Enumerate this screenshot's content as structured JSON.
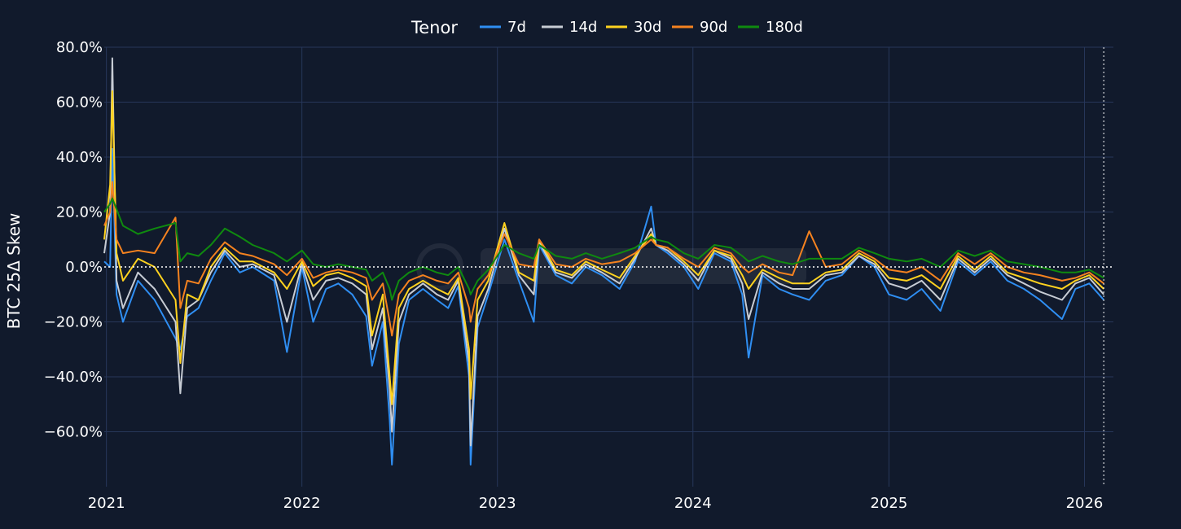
{
  "legend": {
    "title": "Tenor"
  },
  "yaxis": {
    "title": "BTC 25Δ Skew"
  },
  "colors": {
    "background": "#111a2c",
    "grid": "#27375a",
    "zero_line": "#ffffff",
    "text": "#ffffff"
  },
  "chart_data": {
    "type": "line",
    "ylabel": "BTC 25Δ Skew",
    "xlabel": "",
    "ylim": [
      -0.8,
      0.8
    ],
    "xlim": [
      "2020-12-28",
      "2026-02-24"
    ],
    "y_tick_values": [
      0.8,
      0.6,
      0.4,
      0.2,
      0.0,
      -0.2,
      -0.4,
      -0.6
    ],
    "y_tick_labels": [
      "80.0%",
      "60.0%",
      "40.0%",
      "20.0%",
      "0.0%",
      "−20.0%",
      "−40.0%",
      "−60.0%"
    ],
    "x_tick_values": [
      "2021-01-01",
      "2022-01-01",
      "2023-01-01",
      "2024-01-01",
      "2025-01-01",
      "2026-01-01"
    ],
    "x_tick_labels": [
      "2021",
      "2022",
      "2023",
      "2024",
      "2025",
      "2026"
    ],
    "grid": true,
    "legend_position": "top-center",
    "reference_lines": [
      {
        "axis": "y",
        "value": 0.0,
        "style": "dotted"
      },
      {
        "axis": "x",
        "value": "2026-02-06",
        "style": "dotted"
      }
    ],
    "series": [
      {
        "name": "7d",
        "color": "#2f8ef2",
        "x": [
          "2020-12-28",
          "2021-01-08",
          "2021-01-12",
          "2021-01-20",
          "2021-02-01",
          "2021-03-01",
          "2021-04-01",
          "2021-05-10",
          "2021-05-19",
          "2021-06-01",
          "2021-06-22",
          "2021-07-15",
          "2021-08-10",
          "2021-09-07",
          "2021-10-01",
          "2021-11-10",
          "2021-12-04",
          "2022-01-01",
          "2022-01-22",
          "2022-02-15",
          "2022-03-10",
          "2022-04-05",
          "2022-05-01",
          "2022-05-12",
          "2022-06-01",
          "2022-06-14",
          "2022-06-18",
          "2022-07-01",
          "2022-07-20",
          "2022-08-15",
          "2022-09-10",
          "2022-10-01",
          "2022-10-20",
          "2022-11-09",
          "2022-11-12",
          "2022-11-25",
          "2022-12-15",
          "2023-01-14",
          "2023-02-10",
          "2023-03-10",
          "2023-03-20",
          "2023-04-20",
          "2023-05-20",
          "2023-06-15",
          "2023-07-15",
          "2023-08-17",
          "2023-09-15",
          "2023-10-15",
          "2023-10-24",
          "2023-11-15",
          "2023-12-15",
          "2024-01-11",
          "2024-02-10",
          "2024-03-12",
          "2024-04-02",
          "2024-04-14",
          "2024-05-10",
          "2024-06-10",
          "2024-07-05",
          "2024-08-05",
          "2024-09-05",
          "2024-10-05",
          "2024-11-06",
          "2024-12-05",
          "2025-01-01",
          "2025-02-03",
          "2025-03-03",
          "2025-04-07",
          "2025-05-10",
          "2025-06-10",
          "2025-07-10",
          "2025-08-10",
          "2025-09-10",
          "2025-10-10",
          "2025-11-20",
          "2025-12-15",
          "2026-01-10",
          "2026-02-06"
        ],
        "y": [
          0.02,
          0.0,
          0.43,
          -0.1,
          -0.2,
          -0.05,
          -0.12,
          -0.26,
          -0.3,
          -0.18,
          -0.15,
          -0.05,
          0.05,
          -0.02,
          0.0,
          -0.05,
          -0.31,
          0.0,
          -0.2,
          -0.08,
          -0.06,
          -0.1,
          -0.18,
          -0.36,
          -0.2,
          -0.56,
          -0.72,
          -0.28,
          -0.12,
          -0.08,
          -0.12,
          -0.15,
          -0.07,
          -0.4,
          -0.72,
          -0.22,
          -0.1,
          0.1,
          -0.05,
          -0.2,
          0.08,
          -0.03,
          -0.06,
          0.0,
          -0.03,
          -0.08,
          0.02,
          0.22,
          0.08,
          0.05,
          0.0,
          -0.08,
          0.05,
          0.02,
          -0.1,
          -0.33,
          -0.03,
          -0.08,
          -0.1,
          -0.12,
          -0.05,
          -0.03,
          0.04,
          0.0,
          -0.1,
          -0.12,
          -0.08,
          -0.16,
          0.02,
          -0.03,
          0.02,
          -0.05,
          -0.08,
          -0.12,
          -0.19,
          -0.08,
          -0.06,
          -0.12
        ]
      },
      {
        "name": "14d",
        "color": "#c7ccd4",
        "x": [
          "2020-12-28",
          "2021-01-08",
          "2021-01-12",
          "2021-01-20",
          "2021-02-01",
          "2021-03-01",
          "2021-04-01",
          "2021-05-10",
          "2021-05-19",
          "2021-06-01",
          "2021-06-22",
          "2021-07-15",
          "2021-08-10",
          "2021-09-07",
          "2021-10-01",
          "2021-11-10",
          "2021-12-04",
          "2022-01-01",
          "2022-01-22",
          "2022-02-15",
          "2022-03-10",
          "2022-04-05",
          "2022-05-01",
          "2022-05-12",
          "2022-06-01",
          "2022-06-14",
          "2022-06-18",
          "2022-07-01",
          "2022-07-20",
          "2022-08-15",
          "2022-09-10",
          "2022-10-01",
          "2022-10-20",
          "2022-11-09",
          "2022-11-12",
          "2022-11-25",
          "2022-12-15",
          "2023-01-14",
          "2023-02-10",
          "2023-03-10",
          "2023-03-20",
          "2023-04-20",
          "2023-05-20",
          "2023-06-15",
          "2023-07-15",
          "2023-08-17",
          "2023-09-15",
          "2023-10-15",
          "2023-10-24",
          "2023-11-15",
          "2023-12-15",
          "2024-01-11",
          "2024-02-10",
          "2024-03-12",
          "2024-04-02",
          "2024-04-14",
          "2024-05-10",
          "2024-06-10",
          "2024-07-05",
          "2024-08-05",
          "2024-09-05",
          "2024-10-05",
          "2024-11-06",
          "2024-12-05",
          "2025-01-01",
          "2025-02-03",
          "2025-03-03",
          "2025-04-07",
          "2025-05-10",
          "2025-06-10",
          "2025-07-10",
          "2025-08-10",
          "2025-09-10",
          "2025-10-10",
          "2025-11-20",
          "2025-12-15",
          "2026-01-10",
          "2026-02-06"
        ],
        "y": [
          0.05,
          0.2,
          0.76,
          -0.05,
          -0.15,
          -0.02,
          -0.08,
          -0.2,
          -0.46,
          -0.15,
          -0.12,
          -0.02,
          0.06,
          0.0,
          0.01,
          -0.03,
          -0.2,
          0.01,
          -0.12,
          -0.05,
          -0.04,
          -0.06,
          -0.1,
          -0.3,
          -0.15,
          -0.45,
          -0.6,
          -0.2,
          -0.1,
          -0.06,
          -0.1,
          -0.12,
          -0.05,
          -0.35,
          -0.65,
          -0.18,
          -0.08,
          0.14,
          -0.03,
          -0.1,
          0.09,
          -0.02,
          -0.04,
          0.01,
          -0.02,
          -0.06,
          0.03,
          0.14,
          0.08,
          0.06,
          0.01,
          -0.05,
          0.06,
          0.03,
          -0.06,
          -0.19,
          -0.02,
          -0.06,
          -0.08,
          -0.08,
          -0.03,
          -0.02,
          0.04,
          0.01,
          -0.06,
          -0.08,
          -0.05,
          -0.12,
          0.03,
          -0.02,
          0.03,
          -0.03,
          -0.06,
          -0.09,
          -0.12,
          -0.06,
          -0.04,
          -0.1
        ]
      },
      {
        "name": "30d",
        "color": "#ffd21f",
        "x": [
          "2020-12-28",
          "2021-01-08",
          "2021-01-12",
          "2021-01-20",
          "2021-02-01",
          "2021-03-01",
          "2021-04-01",
          "2021-05-10",
          "2021-05-19",
          "2021-06-01",
          "2021-06-22",
          "2021-07-15",
          "2021-08-10",
          "2021-09-07",
          "2021-10-01",
          "2021-11-10",
          "2021-12-04",
          "2022-01-01",
          "2022-01-22",
          "2022-02-15",
          "2022-03-10",
          "2022-04-05",
          "2022-05-01",
          "2022-05-12",
          "2022-06-01",
          "2022-06-14",
          "2022-06-18",
          "2022-07-01",
          "2022-07-20",
          "2022-08-15",
          "2022-09-10",
          "2022-10-01",
          "2022-10-20",
          "2022-11-09",
          "2022-11-12",
          "2022-11-25",
          "2022-12-15",
          "2023-01-14",
          "2023-02-10",
          "2023-03-10",
          "2023-03-20",
          "2023-04-20",
          "2023-05-20",
          "2023-06-15",
          "2023-07-15",
          "2023-08-17",
          "2023-09-15",
          "2023-10-15",
          "2023-10-24",
          "2023-11-15",
          "2023-12-15",
          "2024-01-11",
          "2024-02-10",
          "2024-03-12",
          "2024-04-02",
          "2024-04-14",
          "2024-05-10",
          "2024-06-10",
          "2024-07-05",
          "2024-08-05",
          "2024-09-05",
          "2024-10-05",
          "2024-11-06",
          "2024-12-05",
          "2025-01-01",
          "2025-02-03",
          "2025-03-03",
          "2025-04-07",
          "2025-05-10",
          "2025-06-10",
          "2025-07-10",
          "2025-08-10",
          "2025-09-10",
          "2025-10-10",
          "2025-11-20",
          "2025-12-15",
          "2026-01-10",
          "2026-02-06"
        ],
        "y": [
          0.1,
          0.3,
          0.64,
          0.05,
          -0.05,
          0.03,
          0.0,
          -0.12,
          -0.35,
          -0.1,
          -0.12,
          0.0,
          0.07,
          0.02,
          0.02,
          -0.02,
          -0.08,
          0.02,
          -0.07,
          -0.03,
          -0.02,
          -0.04,
          -0.07,
          -0.25,
          -0.1,
          -0.4,
          -0.5,
          -0.15,
          -0.08,
          -0.05,
          -0.08,
          -0.1,
          -0.04,
          -0.3,
          -0.48,
          -0.12,
          -0.05,
          0.16,
          -0.02,
          -0.05,
          0.1,
          -0.01,
          -0.03,
          0.02,
          -0.01,
          -0.04,
          0.04,
          0.12,
          0.08,
          0.07,
          0.02,
          -0.03,
          0.06,
          0.04,
          -0.03,
          -0.08,
          -0.01,
          -0.04,
          -0.06,
          -0.06,
          -0.02,
          -0.01,
          0.05,
          0.02,
          -0.04,
          -0.05,
          -0.03,
          -0.08,
          0.04,
          -0.01,
          0.04,
          -0.02,
          -0.04,
          -0.06,
          -0.08,
          -0.05,
          -0.03,
          -0.08
        ]
      },
      {
        "name": "90d",
        "color": "#f5821f",
        "x": [
          "2020-12-28",
          "2021-01-08",
          "2021-01-12",
          "2021-01-20",
          "2021-02-01",
          "2021-03-01",
          "2021-04-01",
          "2021-05-10",
          "2021-05-19",
          "2021-06-01",
          "2021-06-22",
          "2021-07-15",
          "2021-08-10",
          "2021-09-07",
          "2021-10-01",
          "2021-11-10",
          "2021-12-04",
          "2022-01-01",
          "2022-01-22",
          "2022-02-15",
          "2022-03-10",
          "2022-04-05",
          "2022-05-01",
          "2022-05-12",
          "2022-06-01",
          "2022-06-14",
          "2022-06-18",
          "2022-07-01",
          "2022-07-20",
          "2022-08-15",
          "2022-09-10",
          "2022-10-01",
          "2022-10-20",
          "2022-11-09",
          "2022-11-12",
          "2022-11-25",
          "2022-12-15",
          "2023-01-14",
          "2023-02-10",
          "2023-03-10",
          "2023-03-20",
          "2023-04-20",
          "2023-05-20",
          "2023-06-15",
          "2023-07-15",
          "2023-08-17",
          "2023-09-15",
          "2023-10-15",
          "2023-10-24",
          "2023-11-15",
          "2023-12-15",
          "2024-01-11",
          "2024-02-10",
          "2024-03-12",
          "2024-04-02",
          "2024-04-14",
          "2024-05-10",
          "2024-06-10",
          "2024-07-05",
          "2024-08-05",
          "2024-09-05",
          "2024-10-05",
          "2024-11-06",
          "2024-12-05",
          "2025-01-01",
          "2025-02-03",
          "2025-03-03",
          "2025-04-07",
          "2025-05-10",
          "2025-06-10",
          "2025-07-10",
          "2025-08-10",
          "2025-09-10",
          "2025-10-10",
          "2025-11-20",
          "2025-12-15",
          "2026-01-10",
          "2026-02-06"
        ],
        "y": [
          0.15,
          0.2,
          0.31,
          0.1,
          0.05,
          0.06,
          0.05,
          0.18,
          -0.15,
          -0.05,
          -0.06,
          0.03,
          0.09,
          0.05,
          0.04,
          0.01,
          -0.03,
          0.03,
          -0.04,
          -0.02,
          -0.01,
          -0.02,
          -0.04,
          -0.12,
          -0.06,
          -0.2,
          -0.25,
          -0.1,
          -0.05,
          -0.03,
          -0.05,
          -0.06,
          -0.02,
          -0.15,
          -0.2,
          -0.08,
          -0.03,
          0.12,
          0.01,
          0.0,
          0.1,
          0.01,
          0.0,
          0.03,
          0.01,
          0.02,
          0.05,
          0.1,
          0.08,
          0.07,
          0.03,
          0.0,
          0.07,
          0.05,
          0.0,
          -0.02,
          0.01,
          -0.02,
          -0.03,
          0.13,
          0.0,
          0.01,
          0.06,
          0.03,
          -0.01,
          -0.02,
          0.0,
          -0.05,
          0.05,
          0.01,
          0.05,
          0.0,
          -0.02,
          -0.03,
          -0.05,
          -0.04,
          -0.02,
          -0.06
        ]
      },
      {
        "name": "180d",
        "color": "#0f8a0f",
        "x": [
          "2020-12-28",
          "2021-01-08",
          "2021-01-12",
          "2021-01-20",
          "2021-02-01",
          "2021-03-01",
          "2021-04-01",
          "2021-05-10",
          "2021-05-19",
          "2021-06-01",
          "2021-06-22",
          "2021-07-15",
          "2021-08-10",
          "2021-09-07",
          "2021-10-01",
          "2021-11-10",
          "2021-12-04",
          "2022-01-01",
          "2022-01-22",
          "2022-02-15",
          "2022-03-10",
          "2022-04-05",
          "2022-05-01",
          "2022-05-12",
          "2022-06-01",
          "2022-06-14",
          "2022-06-18",
          "2022-07-01",
          "2022-07-20",
          "2022-08-15",
          "2022-09-10",
          "2022-10-01",
          "2022-10-20",
          "2022-11-09",
          "2022-11-12",
          "2022-11-25",
          "2022-12-15",
          "2023-01-14",
          "2023-02-10",
          "2023-03-10",
          "2023-03-20",
          "2023-04-20",
          "2023-05-20",
          "2023-06-15",
          "2023-07-15",
          "2023-08-17",
          "2023-09-15",
          "2023-10-15",
          "2023-10-24",
          "2023-11-15",
          "2023-12-15",
          "2024-01-11",
          "2024-02-10",
          "2024-03-12",
          "2024-04-02",
          "2024-04-14",
          "2024-05-10",
          "2024-06-10",
          "2024-07-05",
          "2024-08-05",
          "2024-09-05",
          "2024-10-05",
          "2024-11-06",
          "2024-12-05",
          "2025-01-01",
          "2025-02-03",
          "2025-03-03",
          "2025-04-07",
          "2025-05-10",
          "2025-06-10",
          "2025-07-10",
          "2025-08-10",
          "2025-09-10",
          "2025-10-10",
          "2025-11-20",
          "2025-12-15",
          "2026-01-10",
          "2026-02-06"
        ],
        "y": [
          0.2,
          0.23,
          0.25,
          0.21,
          0.15,
          0.12,
          0.14,
          0.16,
          0.02,
          0.05,
          0.04,
          0.08,
          0.14,
          0.11,
          0.08,
          0.05,
          0.02,
          0.06,
          0.01,
          0.0,
          0.01,
          0.0,
          -0.01,
          -0.05,
          -0.02,
          -0.08,
          -0.12,
          -0.05,
          -0.02,
          0.0,
          -0.02,
          -0.03,
          0.0,
          -0.08,
          -0.1,
          -0.05,
          -0.01,
          0.08,
          0.05,
          0.03,
          0.08,
          0.04,
          0.03,
          0.05,
          0.03,
          0.05,
          0.07,
          0.11,
          0.1,
          0.09,
          0.05,
          0.03,
          0.08,
          0.07,
          0.04,
          0.02,
          0.04,
          0.02,
          0.01,
          0.03,
          0.03,
          0.03,
          0.07,
          0.05,
          0.03,
          0.02,
          0.03,
          0.0,
          0.06,
          0.04,
          0.06,
          0.02,
          0.01,
          0.0,
          -0.02,
          -0.02,
          -0.01,
          -0.04
        ]
      }
    ]
  }
}
